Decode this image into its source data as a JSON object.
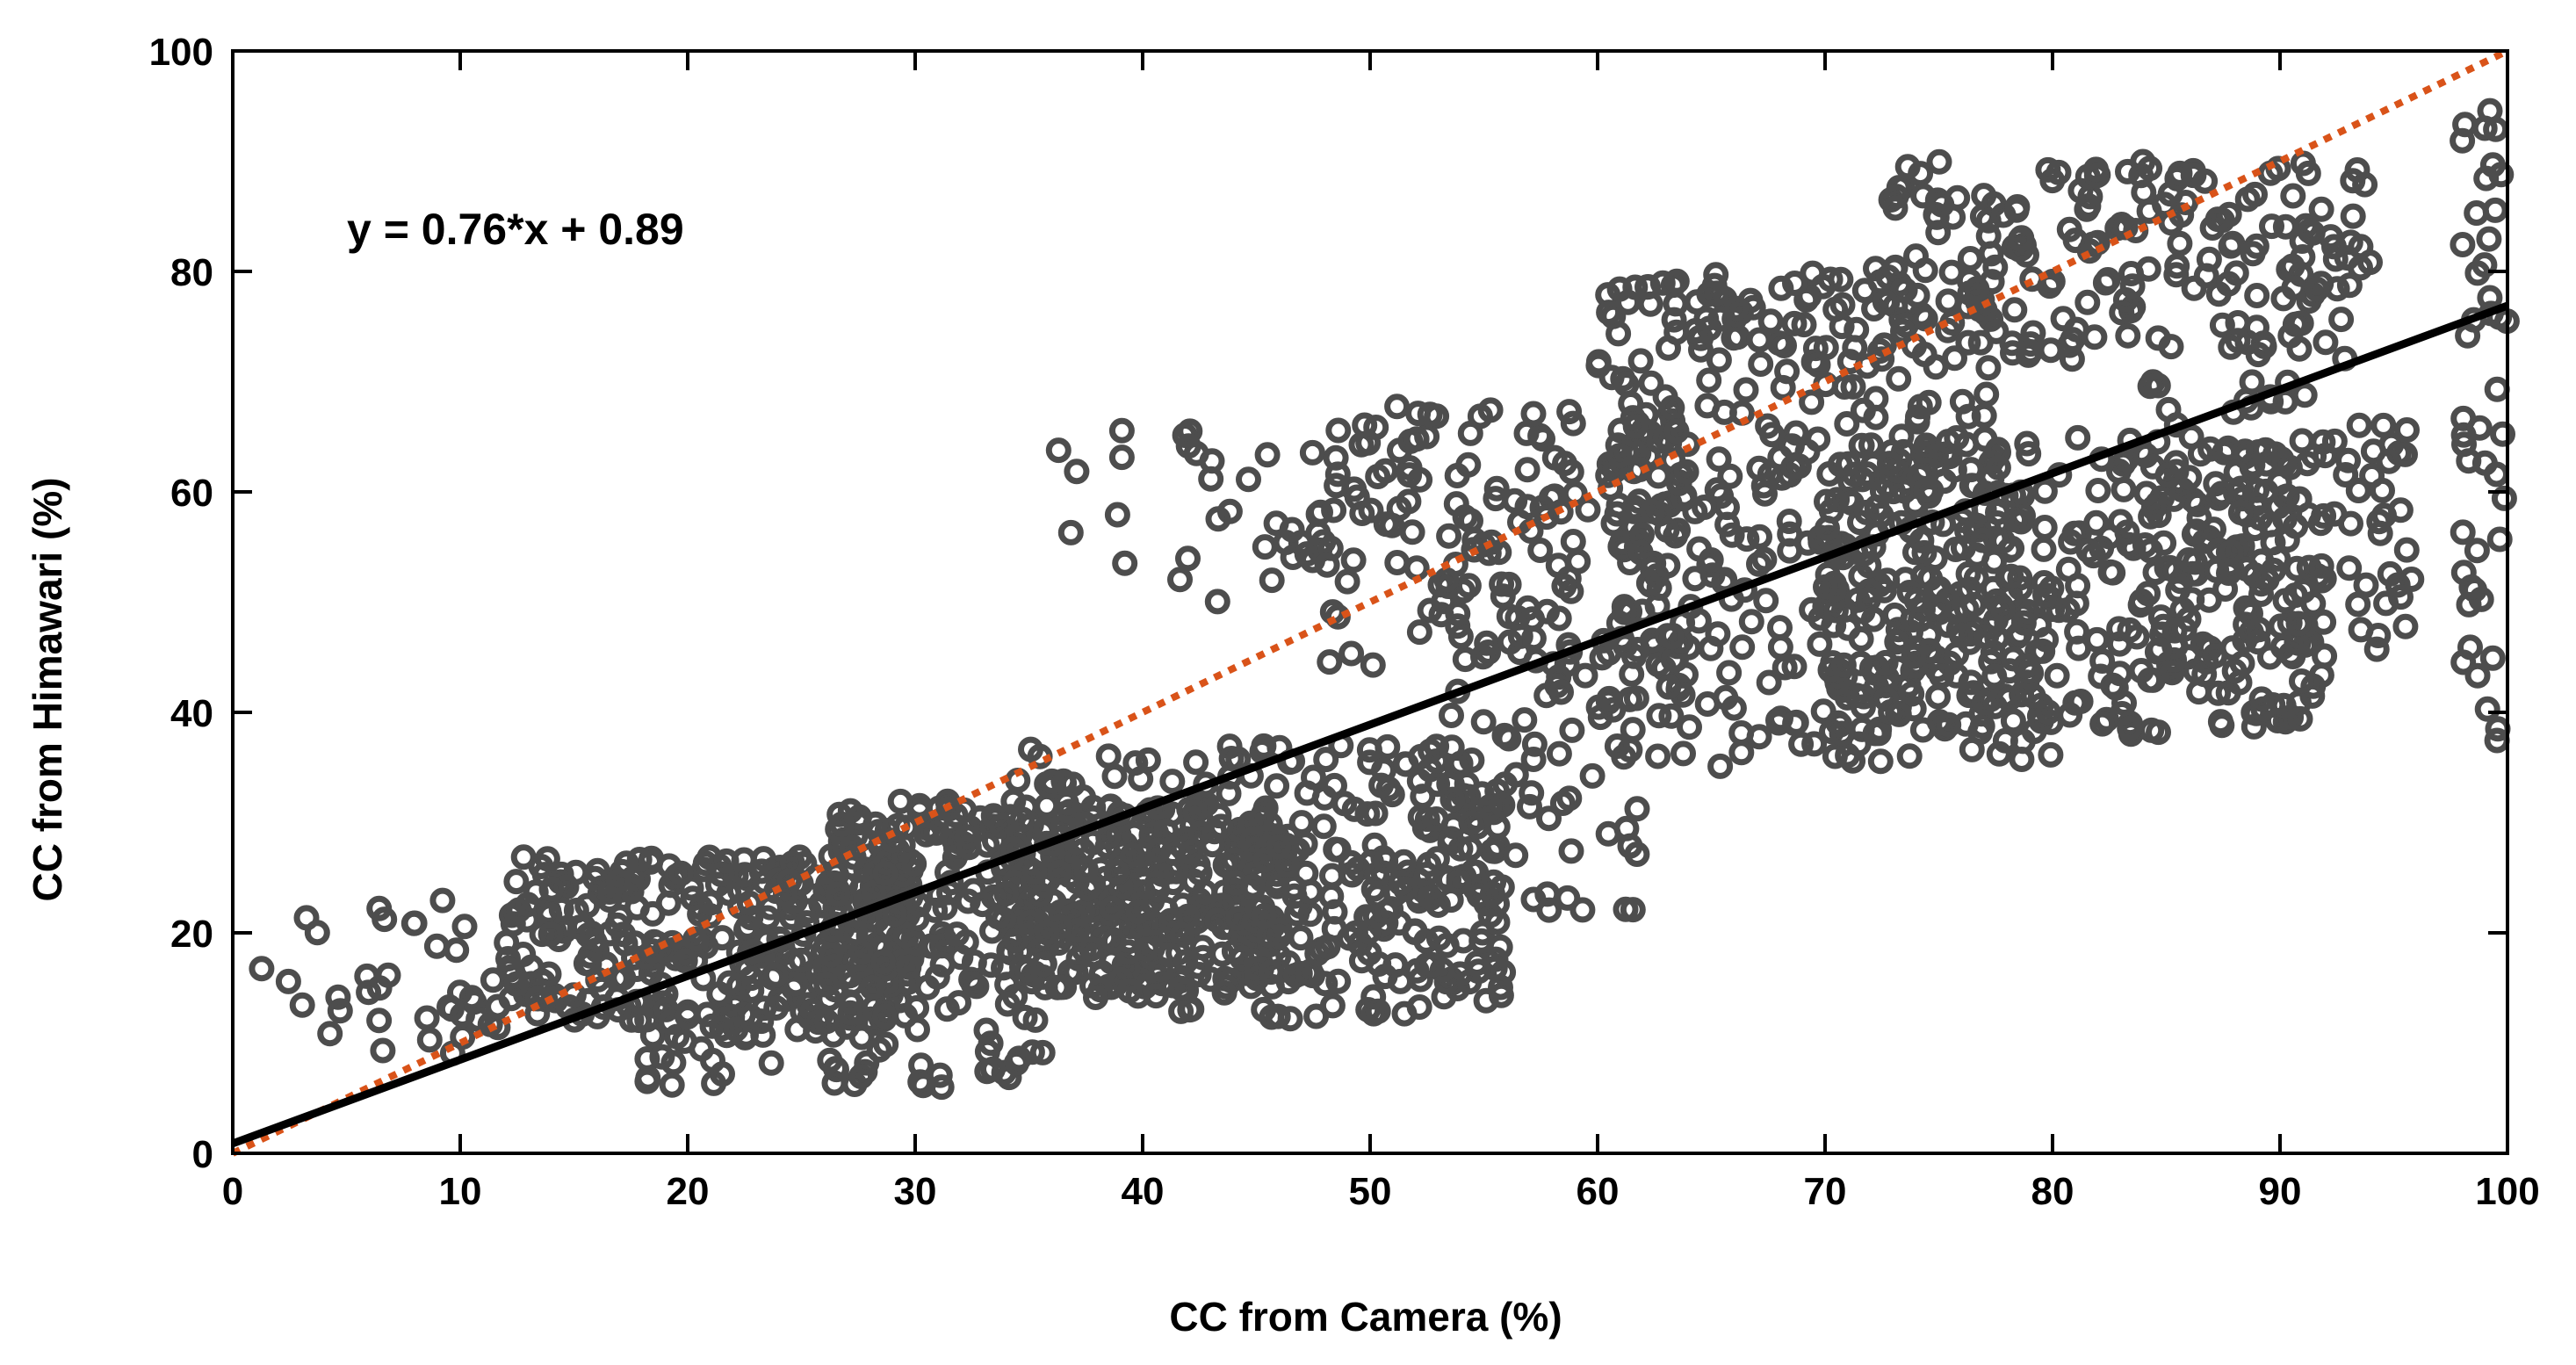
{
  "chart_data": {
    "type": "scatter",
    "xlabel": "CC from Camera (%)",
    "ylabel": "CC from Himawari (%)",
    "xlim": [
      0,
      100
    ],
    "ylim": [
      0,
      100
    ],
    "xticks": [
      "0",
      "10",
      "20",
      "30",
      "40",
      "50",
      "60",
      "70",
      "80",
      "90",
      "100"
    ],
    "yticks": [
      "0",
      "20",
      "40",
      "60",
      "80",
      "100"
    ],
    "annotation": "y = 0.76*x + 0.89",
    "fit_line": {
      "slope": 0.76,
      "intercept": 0.89,
      "color": "#000000"
    },
    "reference_line": {
      "slope": 1,
      "intercept": 0,
      "style": "dotted",
      "color": "#d95319"
    },
    "marker_color": "#4d4d4d",
    "grid": false,
    "clusters": [
      {
        "x": [
          1,
          14
        ],
        "y": [
          9,
          23
        ],
        "count": 40
      },
      {
        "x": [
          12,
          30
        ],
        "y": [
          12,
          27
        ],
        "count": 320
      },
      {
        "x": [
          18,
          36
        ],
        "y": [
          6,
          14
        ],
        "count": 70
      },
      {
        "x": [
          26,
          46
        ],
        "y": [
          15,
          32
        ],
        "count": 420
      },
      {
        "x": [
          34,
          56
        ],
        "y": [
          12,
          37
        ],
        "count": 260
      },
      {
        "x": [
          44,
          56
        ],
        "y": [
          15,
          28
        ],
        "count": 90
      },
      {
        "x": [
          36,
          48
        ],
        "y": [
          50,
          66
        ],
        "count": 35
      },
      {
        "x": [
          48,
          64
        ],
        "y": [
          42,
          68
        ],
        "count": 180
      },
      {
        "x": [
          52,
          62
        ],
        "y": [
          22,
          42
        ],
        "count": 60
      },
      {
        "x": [
          60,
          78
        ],
        "y": [
          55,
          80
        ],
        "count": 220
      },
      {
        "x": [
          60,
          80
        ],
        "y": [
          35,
          55
        ],
        "count": 160
      },
      {
        "x": [
          70,
          92
        ],
        "y": [
          38,
          65
        ],
        "count": 380
      },
      {
        "x": [
          72,
          94
        ],
        "y": [
          72,
          90
        ],
        "count": 200
      },
      {
        "x": [
          84,
          96
        ],
        "y": [
          45,
          70
        ],
        "count": 110
      },
      {
        "x": [
          98,
          100
        ],
        "y": [
          36,
          95
        ],
        "count": 45
      }
    ]
  }
}
